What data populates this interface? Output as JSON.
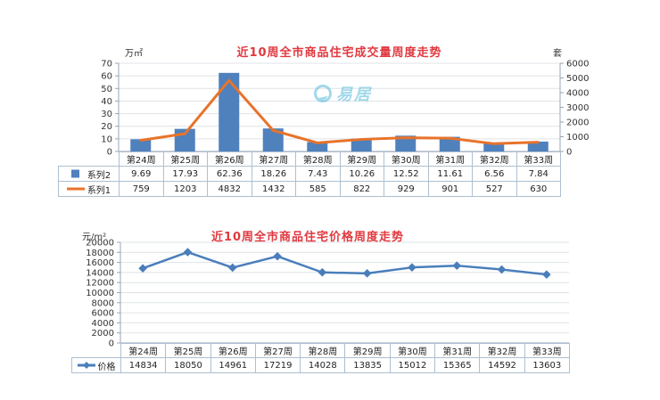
{
  "watermark": {
    "text": "易居",
    "color": "#45b4d6"
  },
  "chart_data": [
    {
      "type": "bar",
      "title": "近10周全市商品住宅成交量周度走势",
      "title_color": "#e0393f",
      "categories": [
        "第24周",
        "第25周",
        "第26周",
        "第27周",
        "第28周",
        "第29周",
        "第30周",
        "第31周",
        "第32周",
        "第33周"
      ],
      "series": [
        {
          "name": "系列2",
          "kind": "bar",
          "axis": "left",
          "swatch": "square",
          "color": "#4f81bd",
          "values": [
            9.69,
            17.93,
            62.36,
            18.26,
            7.43,
            10.26,
            12.52,
            11.61,
            6.56,
            7.84
          ]
        },
        {
          "name": "系列1",
          "kind": "line",
          "axis": "right",
          "swatch": "line",
          "color": "#e8732a",
          "values": [
            759,
            1203,
            4832,
            1432,
            585,
            822,
            929,
            901,
            527,
            630
          ]
        }
      ],
      "left_axis": {
        "label": "万㎡",
        "min": 0,
        "max": 70,
        "step": 10
      },
      "right_axis": {
        "label": "套",
        "min": 0,
        "max": 6000,
        "step": 1000
      },
      "grid": true,
      "legend_position": "table-left"
    },
    {
      "type": "line",
      "title": "近10周全市商品住宅价格周度走势",
      "title_color": "#e0393f",
      "categories": [
        "第24周",
        "第25周",
        "第26周",
        "第27周",
        "第28周",
        "第29周",
        "第30周",
        "第31周",
        "第32周",
        "第33周"
      ],
      "series": [
        {
          "name": "价格",
          "kind": "line",
          "marker": "diamond",
          "swatch": "line-diamond",
          "color": "#4a7ebb",
          "values": [
            14834,
            18050,
            14961,
            17219,
            14028,
            13835,
            15012,
            15365,
            14592,
            13603
          ]
        }
      ],
      "y_axis": {
        "label": "元/m²",
        "min": 0,
        "max": 20000,
        "step": 2000
      },
      "grid": true,
      "legend_position": "table-left"
    }
  ]
}
